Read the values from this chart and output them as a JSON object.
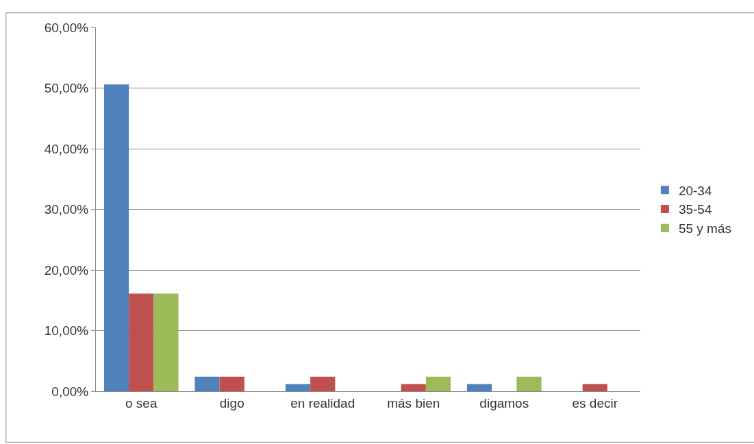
{
  "chart_data": {
    "type": "bar",
    "categories": [
      "o sea",
      "digo",
      "en realidad",
      "más bien",
      "digamos",
      "es decir"
    ],
    "series": [
      {
        "name": "20-34",
        "color": "#4f81bd",
        "values": [
          50.6,
          2.4,
          1.2,
          0,
          1.2,
          0
        ]
      },
      {
        "name": "35-54",
        "color": "#c0504d",
        "values": [
          16.1,
          2.4,
          2.4,
          1.2,
          0,
          1.2
        ]
      },
      {
        "name": "55 y más",
        "color": "#9bbb59",
        "values": [
          16.1,
          0,
          0,
          2.4,
          2.4,
          0
        ]
      }
    ],
    "ylim": [
      0,
      60
    ],
    "yticks": [
      {
        "value": 0,
        "label": "0,00%"
      },
      {
        "value": 10,
        "label": "10,00%"
      },
      {
        "value": 20,
        "label": "20,00%"
      },
      {
        "value": 30,
        "label": "30,00%"
      },
      {
        "value": 40,
        "label": "40,00%"
      },
      {
        "value": 50,
        "label": "50,00%"
      },
      {
        "value": 60,
        "label": "60,00%"
      }
    ],
    "grid": "y",
    "legend": "right"
  }
}
